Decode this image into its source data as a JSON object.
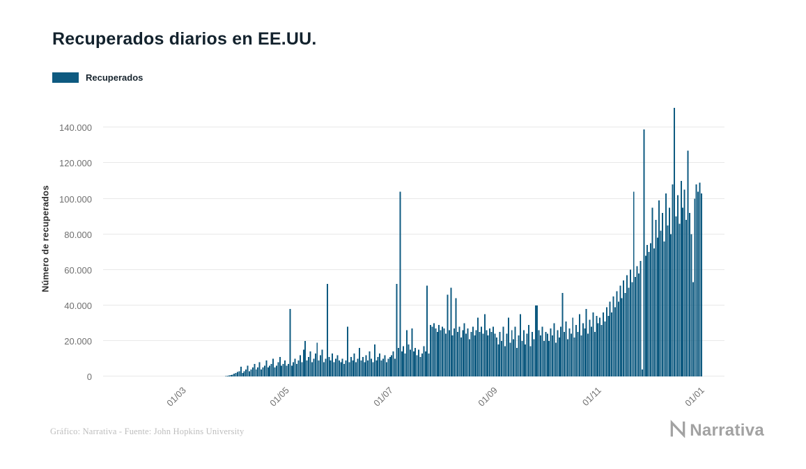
{
  "header": {
    "title": "Recuperados diarios en EE.UU."
  },
  "legend": {
    "label": "Recuperados",
    "color": "#0e5a80"
  },
  "footer": {
    "credit": "Gráfico: Narrativa - Fuente: John Hopkins University",
    "brand": "Narrativa"
  },
  "chart_data": {
    "type": "bar",
    "title": "Recuperados diarios en EE.UU.",
    "series_name": "Recuperados",
    "xlabel": "",
    "ylabel": "Número de recuperados",
    "bar_color": "#0e5a80",
    "grid": true,
    "legend_position": "top-left",
    "ylim": [
      0,
      155000
    ],
    "yticks": [
      {
        "value": 0,
        "label": "0"
      },
      {
        "value": 20000,
        "label": "20.000"
      },
      {
        "value": 40000,
        "label": "40.000"
      },
      {
        "value": 60000,
        "label": "60.000"
      },
      {
        "value": 80000,
        "label": "80.000"
      },
      {
        "value": 100000,
        "label": "100.000"
      },
      {
        "value": 120000,
        "label": "120.000"
      },
      {
        "value": 140000,
        "label": "140.000"
      }
    ],
    "total_days": 367,
    "start_index": 72,
    "start_date": "2020-03-25",
    "xticks": [
      {
        "label": "01/03",
        "index": 48
      },
      {
        "label": "01/05",
        "index": 109
      },
      {
        "label": "01/07",
        "index": 170
      },
      {
        "label": "01/09",
        "index": 232
      },
      {
        "label": "01/11",
        "index": 293
      },
      {
        "label": "01/01",
        "index": 354
      }
    ],
    "values": [
      100,
      300,
      500,
      800,
      1000,
      1500,
      2000,
      2500,
      3000,
      5500,
      2000,
      3000,
      4000,
      6000,
      3000,
      4000,
      5000,
      7000,
      4000,
      5000,
      8000,
      4000,
      5000,
      6000,
      9000,
      5000,
      6000,
      7000,
      10000,
      5000,
      6000,
      8000,
      11000,
      6000,
      7000,
      9000,
      6000,
      7000,
      38000,
      6000,
      8000,
      10000,
      7000,
      9000,
      12000,
      8000,
      15000,
      20000,
      9000,
      11000,
      14000,
      8000,
      10000,
      13000,
      19000,
      9000,
      12000,
      15000,
      8000,
      10000,
      52000,
      11000,
      9000,
      13000,
      8000,
      10000,
      12000,
      9000,
      8000,
      10000,
      7000,
      9000,
      28000,
      8000,
      11000,
      9000,
      13000,
      8000,
      10000,
      16000,
      9000,
      11000,
      8000,
      12000,
      9000,
      14000,
      10000,
      8000,
      18000,
      9000,
      11000,
      13000,
      9000,
      10000,
      12000,
      8000,
      10000,
      11000,
      12000,
      14000,
      10000,
      52000,
      16000,
      104000,
      14000,
      17000,
      13000,
      26000,
      18000,
      15000,
      27000,
      14000,
      16000,
      12000,
      15000,
      11000,
      13000,
      17000,
      14000,
      51000,
      13000,
      29000,
      28000,
      30000,
      27000,
      25000,
      29000,
      26000,
      28000,
      27000,
      24000,
      46000,
      26000,
      50000,
      23000,
      27000,
      44000,
      25000,
      28000,
      22000,
      26000,
      30000,
      24000,
      27000,
      21000,
      25000,
      28000,
      23000,
      26000,
      33000,
      25000,
      28000,
      24000,
      35000,
      26000,
      23000,
      27000,
      25000,
      28000,
      24000,
      22000,
      18000,
      25000,
      20000,
      28000,
      17000,
      24000,
      33000,
      19000,
      26000,
      21000,
      28000,
      16000,
      23000,
      35000,
      20000,
      26000,
      18000,
      24000,
      29000,
      17000,
      25000,
      21000,
      40000,
      40000,
      26000,
      23000,
      28000,
      20000,
      25000,
      24000,
      20000,
      27000,
      23000,
      30000,
      19000,
      26000,
      22000,
      28000,
      47000,
      25000,
      31000,
      21000,
      27000,
      24000,
      33000,
      22000,
      29000,
      25000,
      35000,
      23000,
      30000,
      27000,
      38000,
      24000,
      32000,
      28000,
      36000,
      25000,
      34000,
      30000,
      33000,
      29000,
      36000,
      31000,
      39000,
      34000,
      42000,
      36000,
      45000,
      39000,
      48000,
      42000,
      51000,
      44000,
      54000,
      47000,
      57000,
      50000,
      60000,
      53000,
      104000,
      56000,
      62000,
      58000,
      65000,
      4000,
      139000,
      68000,
      74000,
      70000,
      75000,
      95000,
      72000,
      88000,
      78000,
      99000,
      82000,
      92000,
      76000,
      103000,
      85000,
      95000,
      80000,
      108000,
      151000,
      90000,
      102000,
      86000,
      110000,
      95000,
      105000,
      88000,
      127000,
      92000,
      80000,
      53000,
      100000,
      108000,
      104000,
      109000,
      103000
    ]
  }
}
